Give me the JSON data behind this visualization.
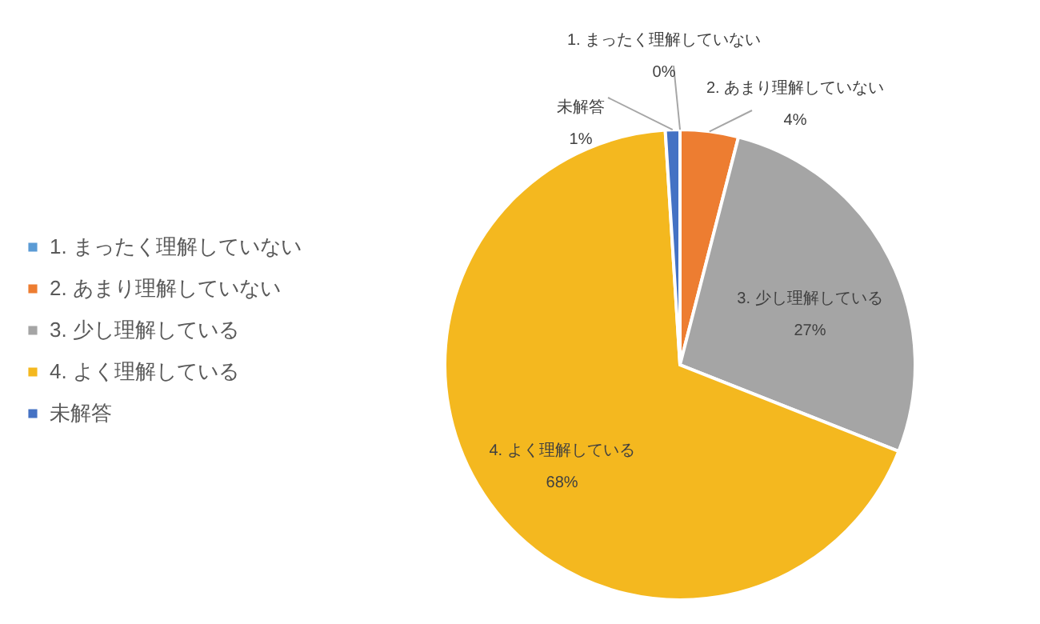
{
  "chart_data": {
    "type": "pie",
    "categories": [
      "1. まったく理解していない",
      "2. あまり理解していない",
      "3. 少し理解している",
      "4. よく理解している",
      "未解答"
    ],
    "values": [
      0,
      4,
      27,
      68,
      1
    ],
    "value_labels": [
      "0%",
      "4%",
      "27%",
      "68%",
      "1%"
    ],
    "colors": [
      "#5b9bd5",
      "#ed7d31",
      "#a5a5a5",
      "#f4b81f",
      "#4472c4"
    ],
    "legend": "left"
  }
}
